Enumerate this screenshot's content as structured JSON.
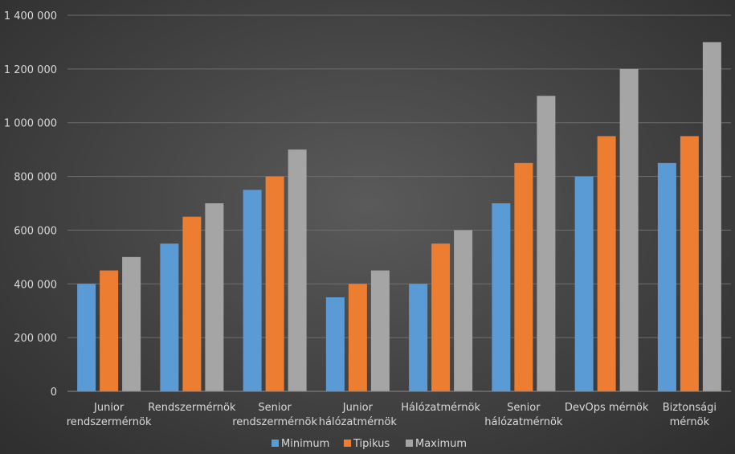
{
  "chart_data": {
    "type": "bar",
    "categories": [
      [
        "Junior",
        "rendszermérnök"
      ],
      [
        "Rendszermérnök"
      ],
      [
        "Senior",
        "rendszermérnök"
      ],
      [
        "Junior",
        "hálózatmérnök"
      ],
      [
        "Hálózatmérnök"
      ],
      [
        "Senior",
        "hálózatmérnök"
      ],
      [
        "DevOps mérnök"
      ],
      [
        "Biztonsági",
        "mérnök"
      ]
    ],
    "series": [
      {
        "name": "Minimum",
        "color": "#5b9bd5",
        "values": [
          400000,
          550000,
          750000,
          350000,
          400000,
          700000,
          800000,
          850000
        ]
      },
      {
        "name": "Tipikus",
        "color": "#ed7d31",
        "values": [
          450000,
          650000,
          800000,
          400000,
          550000,
          850000,
          950000,
          950000
        ]
      },
      {
        "name": "Maximum",
        "color": "#a5a5a5",
        "values": [
          500000,
          700000,
          900000,
          450000,
          600000,
          1100000,
          1200000,
          1300000
        ]
      }
    ],
    "ylim": [
      0,
      1400000
    ],
    "yticks": [
      0,
      200000,
      400000,
      600000,
      800000,
      1000000,
      1200000,
      1400000
    ],
    "ytick_labels": [
      "0",
      "200 000",
      "400 000",
      "600 000",
      "800 000",
      "1 000 000",
      "1 200 000",
      "1 400 000"
    ],
    "grid": true,
    "legend": "bottom"
  }
}
